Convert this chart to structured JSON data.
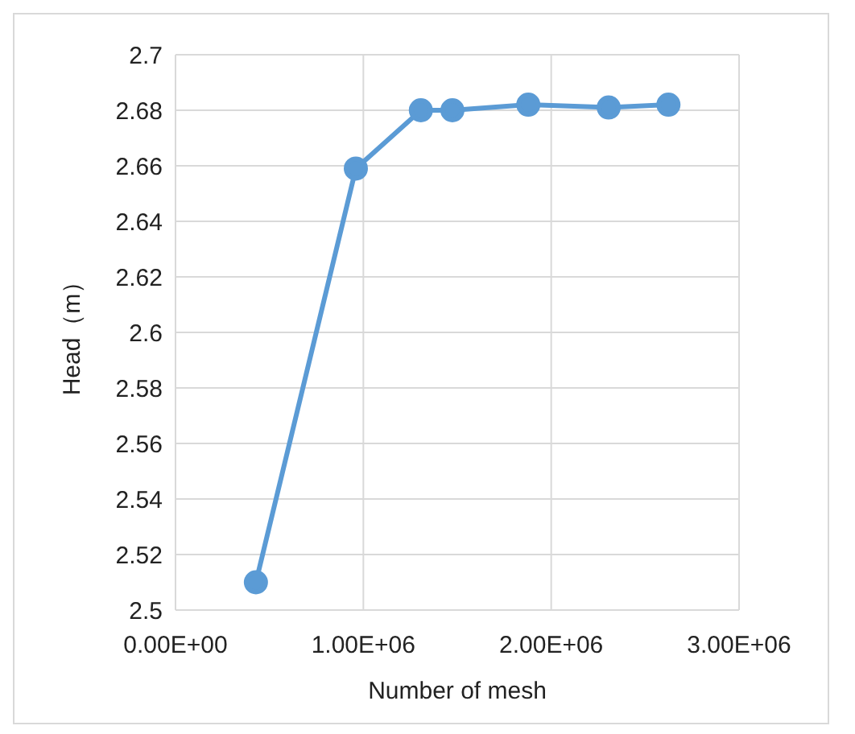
{
  "chart_data": {
    "type": "line",
    "xlabel": "Number of mesh",
    "ylabel": "Head（m）",
    "x": [
      428000,
      960000,
      1306000,
      1474000,
      1878000,
      2306000,
      2624000
    ],
    "series": [
      {
        "color": "#5b9bd5",
        "values": [
          2.51,
          2.659,
          2.68,
          2.68,
          2.682,
          2.681,
          2.682
        ]
      }
    ],
    "xlim": [
      0,
      3000000
    ],
    "xticks": [
      {
        "value": 0,
        "label": "0.00E+00"
      },
      {
        "value": 1000000,
        "label": "1.00E+06"
      },
      {
        "value": 2000000,
        "label": "2.00E+06"
      },
      {
        "value": 3000000,
        "label": "3.00E+06"
      }
    ],
    "ylim": [
      2.5,
      2.7
    ],
    "yticks": [
      2.5,
      2.52,
      2.54,
      2.56,
      2.58,
      2.6,
      2.62,
      2.64,
      2.66,
      2.68,
      2.7
    ],
    "grid": true,
    "marker": "circle",
    "line_style": "solid"
  }
}
